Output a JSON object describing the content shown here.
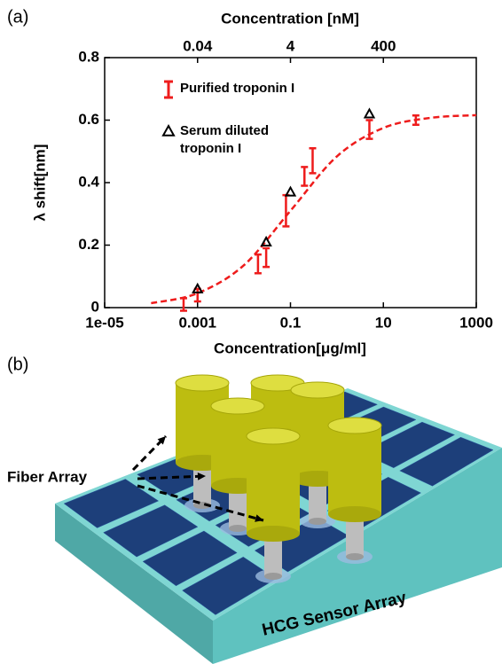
{
  "panel_labels": [
    "(a)",
    "(b)"
  ],
  "chart_data": {
    "type": "scatter",
    "xlabel": "Concentration[μg/ml]",
    "ylabel": "λ shift[nm]",
    "x2label": "Concentration [nM]",
    "xscale": "log",
    "xlim": [
      1e-05,
      1000
    ],
    "xticks": [
      {
        "value": 1e-05,
        "label": "1e-05"
      },
      0.001,
      0.1,
      10,
      1000
    ],
    "x2lim": [
      0.0004,
      40000
    ],
    "x2ticks": [
      0.04,
      4,
      400
    ],
    "ylim": [
      0,
      0.8
    ],
    "yticks": [
      0,
      0.2,
      0.4,
      0.6,
      0.8
    ],
    "series": [
      {
        "name": "Purified troponin I",
        "color": "#ee1c1c",
        "marker": "errorbar",
        "x": [
          0.0005,
          0.001,
          0.02,
          0.03,
          0.08,
          0.2,
          0.3,
          5,
          50
        ],
        "values": [
          0.01,
          0.04,
          0.14,
          0.16,
          0.31,
          0.42,
          0.47,
          0.57,
          0.6
        ],
        "errors": [
          0.02,
          0.02,
          0.03,
          0.03,
          0.05,
          0.03,
          0.04,
          0.03,
          0.015
        ]
      },
      {
        "name": "Serum diluted troponin I",
        "color": "#000000",
        "marker": "triangle",
        "x": [
          0.001,
          0.03,
          0.1,
          5
        ],
        "values": [
          0.06,
          0.21,
          0.37,
          0.62
        ]
      },
      {
        "color": "#ee1c1c",
        "marker": "dashed-line",
        "x": [
          0.0001,
          0.001,
          0.01,
          0.1,
          1,
          10,
          100,
          1000
        ],
        "values": [
          0.014,
          0.046,
          0.136,
          0.31,
          0.484,
          0.575,
          0.607,
          0.616
        ]
      }
    ]
  },
  "illustration": {
    "fiber_label": "Fiber Array",
    "sensor_label": "HCG Sensor Array"
  }
}
